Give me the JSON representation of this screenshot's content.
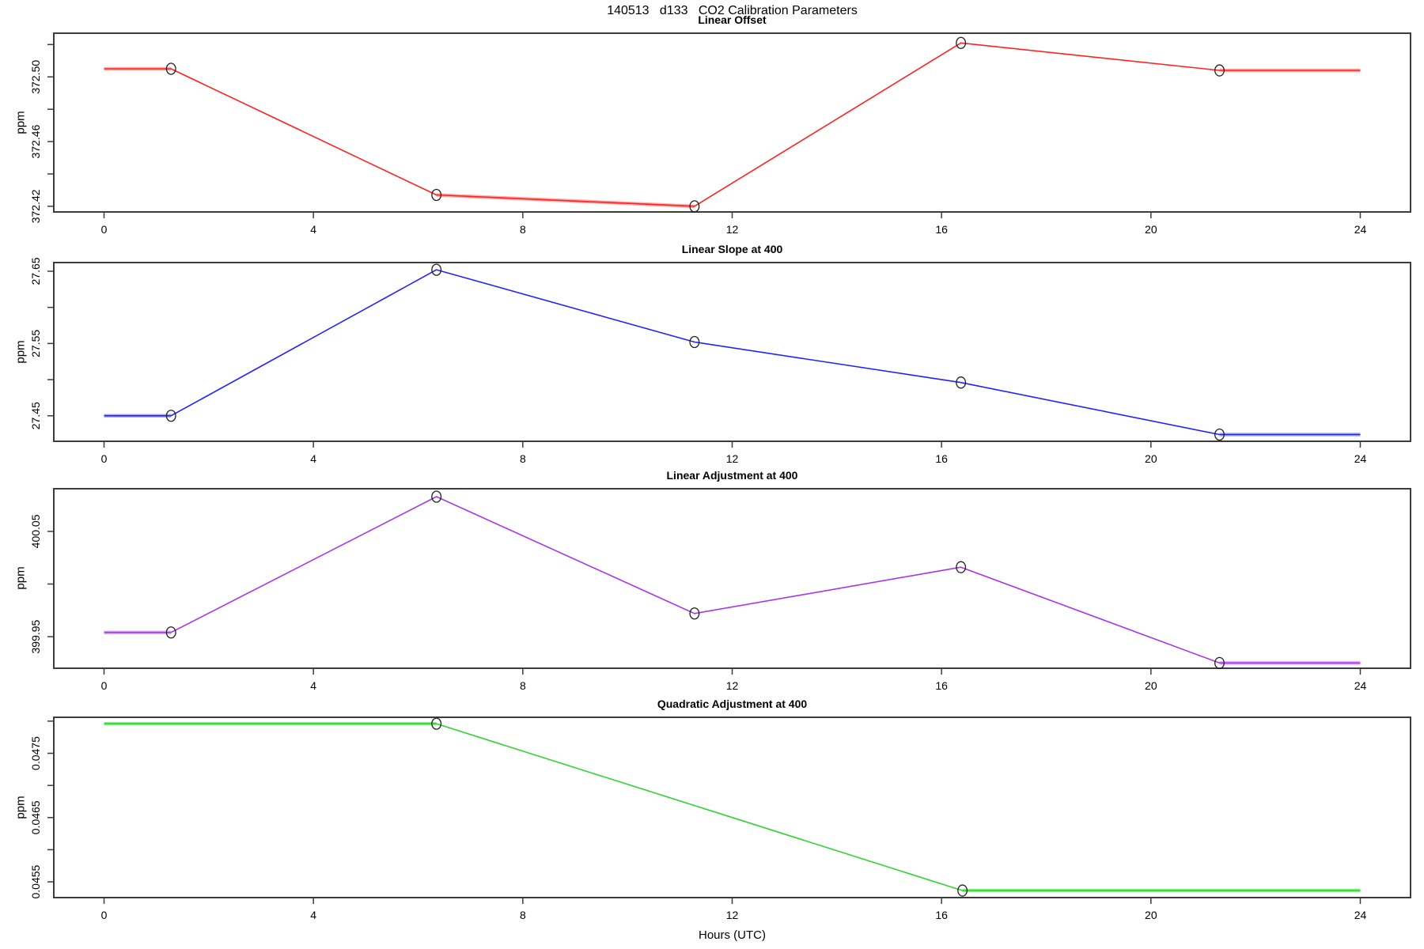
{
  "title": "140513   d133   CO2 Calibration Parameters",
  "xlabel": "Hours (UTC)",
  "x_ticks": [
    {
      "v": 0,
      "t": "0"
    },
    {
      "v": 4,
      "t": "4"
    },
    {
      "v": 8,
      "t": "8"
    },
    {
      "v": 12,
      "t": "12"
    },
    {
      "v": 16,
      "t": "16"
    },
    {
      "v": 20,
      "t": "20"
    },
    {
      "v": 24,
      "t": "24"
    }
  ],
  "xlim": [
    -0.96,
    24.96
  ],
  "axis_color": "#3c3c3c",
  "marker_color": "#1f1f1f",
  "chart_data": [
    {
      "type": "line",
      "title": "Linear Offset",
      "ylabel": "ppm",
      "series_name": "linear-offset",
      "color": "#ff2222",
      "color_light": "#ffaaaa",
      "x": [
        1.28,
        6.35,
        11.28,
        16.37,
        21.31
      ],
      "values": [
        372.505,
        372.427,
        372.42,
        372.521,
        372.504
      ],
      "extend": [
        0,
        24
      ],
      "ylim": [
        372.4165,
        372.527
      ],
      "yticks": [
        {
          "v": 372.42,
          "t": "372.42"
        },
        {
          "v": 372.46,
          "t": "372.46"
        },
        {
          "v": 372.5,
          "t": "372.50"
        }
      ],
      "yticks_minor": [
        372.44,
        372.48,
        372.52
      ],
      "marker": "open-circle"
    },
    {
      "type": "line",
      "title": "Linear Slope at 400",
      "ylabel": "ppm",
      "series_name": "linear-slope-at-400",
      "color": "#2222ff",
      "color_light": "#aaaaff",
      "x": [
        1.28,
        6.35,
        11.28,
        16.37,
        21.31
      ],
      "values": [
        27.45,
        27.652,
        27.552,
        27.496,
        27.424
      ],
      "extend": [
        0,
        24
      ],
      "ylim": [
        27.4147,
        27.662
      ],
      "yticks": [
        {
          "v": 27.45,
          "t": "27.45"
        },
        {
          "v": 27.55,
          "t": "27.55"
        },
        {
          "v": 27.65,
          "t": "27.65"
        }
      ],
      "yticks_minor": [
        27.5,
        27.6
      ],
      "marker": "open-circle"
    },
    {
      "type": "line",
      "title": "Linear Adjustment at 400",
      "ylabel": "ppm",
      "series_name": "linear-adjustment-at-400",
      "color": "#a735ee",
      "color_light": "#dcaaf8",
      "x": [
        1.28,
        6.35,
        11.28,
        16.37,
        21.31
      ],
      "values": [
        399.954,
        400.083,
        399.972,
        400.016,
        399.925
      ],
      "extend": [
        0,
        24
      ],
      "ylim": [
        399.92,
        400.0905
      ],
      "yticks": [
        {
          "v": 399.95,
          "t": "399.95"
        },
        {
          "v": 400.05,
          "t": "400.05"
        }
      ],
      "yticks_minor": [
        400.0
      ],
      "marker": "open-circle"
    },
    {
      "type": "line",
      "title": "Quadratic Adjustment at 400",
      "ylabel": "ppm",
      "series_name": "quadratic-adjustment-at-400",
      "color": "#2fd42f",
      "color_light": "#8cf08c",
      "x": [
        6.35,
        16.4
      ],
      "values": [
        0.04796,
        0.045365
      ],
      "extend": [
        0,
        24
      ],
      "ylim": [
        0.045255,
        0.04806
      ],
      "yticks": [
        {
          "v": 0.0455,
          "t": "0.0455"
        },
        {
          "v": 0.0465,
          "t": "0.0465"
        },
        {
          "v": 0.0475,
          "t": "0.0475"
        }
      ],
      "yticks_minor": [
        0.046,
        0.047,
        0.048
      ],
      "marker": "open-circle"
    }
  ]
}
